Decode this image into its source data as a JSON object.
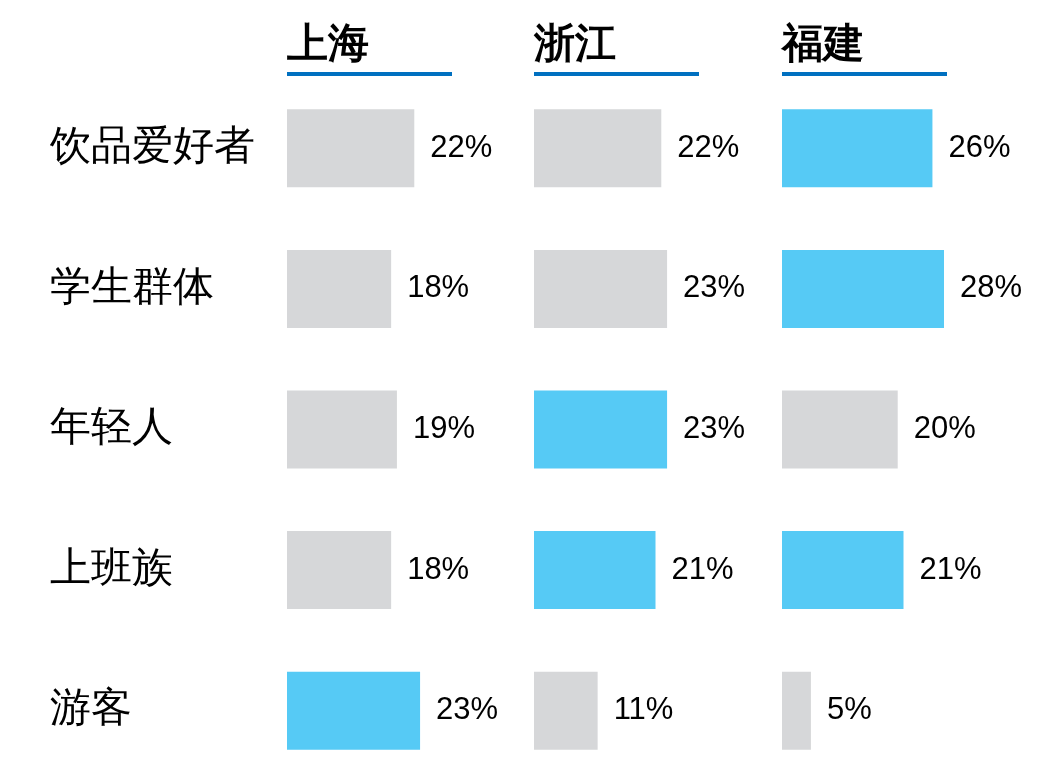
{
  "chart_data": [
    {
      "type": "bar",
      "orientation": "horizontal",
      "title": "上海",
      "categories": [
        "饮品爱好者",
        "学生群体",
        "年轻人",
        "上班族",
        "游客"
      ],
      "values": [
        22,
        18,
        19,
        18,
        23
      ],
      "colors": [
        "#d6d7d9",
        "#d6d7d9",
        "#d6d7d9",
        "#d6d7d9",
        "#56caf5"
      ],
      "value_labels": [
        "22%",
        "18%",
        "19%",
        "18%",
        "23%"
      ],
      "tick_labels": "y"
    },
    {
      "type": "bar",
      "orientation": "horizontal",
      "title": "浙江",
      "categories": [
        null,
        null,
        null,
        null,
        null
      ],
      "values": [
        22,
        23,
        23,
        21,
        11
      ],
      "colors": [
        "#d6d7d9",
        "#d6d7d9",
        "#56caf5",
        "#56caf5",
        "#d6d7d9"
      ],
      "value_labels": [
        "22%",
        "23%",
        "23%",
        "21%",
        "11%"
      ],
      "tick_labels": false
    },
    {
      "type": "bar",
      "orientation": "horizontal",
      "title": "福建",
      "categories": [
        null,
        null,
        null,
        null,
        null
      ],
      "values": [
        26,
        28,
        20,
        21,
        5
      ],
      "colors": [
        "#56caf5",
        "#56caf5",
        "#d6d7d9",
        "#56caf5",
        "#d6d7d9"
      ],
      "value_labels": [
        "26%",
        "28%",
        "20%",
        "21%",
        "5%"
      ],
      "tick_labels": false
    }
  ]
}
